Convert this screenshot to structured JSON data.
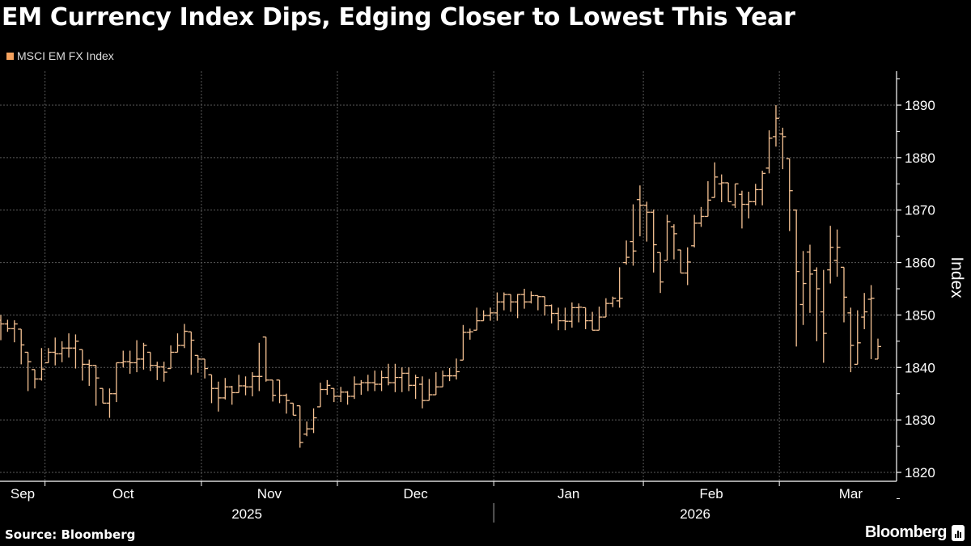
{
  "title": "EM Currency Index Dips, Edging Closer to Lowest This Year",
  "source": "Source: Bloomberg",
  "brand": "Bloomberg",
  "colors": {
    "background": "#000000",
    "bars": "#f7c394",
    "legend_swatch": "#f5a25e",
    "grid": "#5a5a5a",
    "text": "#ffffff"
  },
  "chart_data": {
    "type": "ohlc",
    "title": "EM Currency Index Dips, Edging Closer to Lowest This Year",
    "legend": [
      "MSCI EM FX Index"
    ],
    "legend_position": "top-left",
    "ylabel": "Index",
    "y_axis_side": "right",
    "ylim": [
      1818,
      1896
    ],
    "yticks": [
      1820,
      1830,
      1840,
      1850,
      1860,
      1870,
      1880,
      1890
    ],
    "grid": true,
    "x_month_labels": [
      {
        "month": "2025-09",
        "label": "Sep"
      },
      {
        "month": "2025-10",
        "label": "Oct"
      },
      {
        "month": "2025-11",
        "label": "Nov"
      },
      {
        "month": "2025-12",
        "label": "Dec"
      },
      {
        "month": "2026-01",
        "label": "Jan"
      },
      {
        "month": "2026-02",
        "label": "Feb"
      },
      {
        "month": "2026-03",
        "label": "Mar"
      }
    ],
    "x_year_labels": [
      {
        "year": "2025",
        "label": "2025"
      },
      {
        "year": "2026",
        "label": "2026"
      }
    ],
    "series": [
      {
        "name": "MSCI EM FX Index",
        "fields": [
          "date",
          "open",
          "high",
          "low",
          "close"
        ],
        "bars": [
          [
            "2025-09-22",
            1849.0,
            1850.0,
            1845.2,
            1848.3
          ],
          [
            "2025-09-23",
            1848.3,
            1849.1,
            1846.8,
            1847.4
          ],
          [
            "2025-09-24",
            1847.4,
            1849.0,
            1844.8,
            1848.3
          ],
          [
            "2025-09-25",
            1847.3,
            1847.3,
            1840.6,
            1844.3
          ],
          [
            "2025-09-26",
            1842.9,
            1842.9,
            1835.5,
            1841.1
          ],
          [
            "2025-09-29",
            1839.6,
            1839.6,
            1836.0,
            1837.8
          ],
          [
            "2025-09-30",
            1837.8,
            1843.7,
            1837.5,
            1839.7
          ],
          [
            "2025-10-01",
            1840.9,
            1843.7,
            1840.9,
            1842.9
          ],
          [
            "2025-10-02",
            1842.9,
            1845.7,
            1840.4,
            1842.6
          ],
          [
            "2025-10-03",
            1842.6,
            1845.0,
            1841.0,
            1843.7
          ],
          [
            "2025-10-06",
            1843.7,
            1846.5,
            1841.9,
            1843.7
          ],
          [
            "2025-10-07",
            1843.7,
            1846.3,
            1839.8,
            1845.0
          ],
          [
            "2025-10-08",
            1843.4,
            1843.4,
            1837.5,
            1840.6
          ],
          [
            "2025-10-09",
            1840.6,
            1841.5,
            1836.5,
            1840.4
          ],
          [
            "2025-10-10",
            1840.4,
            1840.4,
            1832.7,
            1838.0
          ],
          [
            "2025-10-13",
            1836.0,
            1836.0,
            1833.2,
            1833.2
          ],
          [
            "2025-10-14",
            1833.2,
            1836.0,
            1830.4,
            1835.0
          ],
          [
            "2025-10-15",
            1835.0,
            1840.9,
            1833.4,
            1840.9
          ],
          [
            "2025-10-16",
            1840.9,
            1843.2,
            1840.0,
            1841.1
          ],
          [
            "2025-10-17",
            1841.1,
            1843.2,
            1838.8,
            1840.9
          ],
          [
            "2025-10-20",
            1840.9,
            1845.2,
            1839.1,
            1841.6
          ],
          [
            "2025-10-21",
            1841.6,
            1844.7,
            1839.6,
            1844.2
          ],
          [
            "2025-10-22",
            1842.9,
            1842.9,
            1839.3,
            1840.4
          ],
          [
            "2025-10-23",
            1840.4,
            1841.1,
            1837.6,
            1840.1
          ],
          [
            "2025-10-24",
            1840.1,
            1841.1,
            1837.3,
            1839.1
          ],
          [
            "2025-10-27",
            1839.8,
            1844.2,
            1839.8,
            1842.9
          ],
          [
            "2025-10-28",
            1842.9,
            1846.5,
            1842.9,
            1844.2
          ],
          [
            "2025-10-29",
            1844.2,
            1848.3,
            1843.7,
            1846.9
          ],
          [
            "2025-10-30",
            1846.8,
            1846.8,
            1838.6,
            1845.2
          ],
          [
            "2025-10-31",
            1842.3,
            1842.3,
            1839.0,
            1841.6
          ],
          [
            "2025-11-03",
            1841.6,
            1841.6,
            1837.9,
            1839.8
          ],
          [
            "2025-11-04",
            1838.6,
            1838.6,
            1833.2,
            1836.0
          ],
          [
            "2025-11-05",
            1836.0,
            1837.3,
            1831.6,
            1834.2
          ],
          [
            "2025-11-06",
            1834.2,
            1838.0,
            1833.9,
            1836.3
          ],
          [
            "2025-11-07",
            1836.3,
            1836.5,
            1832.9,
            1835.2
          ],
          [
            "2025-11-10",
            1835.2,
            1838.6,
            1835.2,
            1836.5
          ],
          [
            "2025-11-11",
            1836.5,
            1838.3,
            1834.7,
            1836.3
          ],
          [
            "2025-11-12",
            1836.3,
            1839.1,
            1834.5,
            1838.3
          ],
          [
            "2025-11-13",
            1838.3,
            1844.7,
            1835.5,
            1838.3
          ],
          [
            "2025-11-14",
            1845.8,
            1845.8,
            1837.3,
            1837.6
          ],
          [
            "2025-11-17",
            1837.6,
            1837.6,
            1833.5,
            1834.7
          ],
          [
            "2025-11-18",
            1837.6,
            1837.6,
            1833.2,
            1834.7
          ],
          [
            "2025-11-19",
            1834.7,
            1835.0,
            1831.2,
            1833.7
          ],
          [
            "2025-11-20",
            1833.2,
            1833.2,
            1830.9,
            1830.9
          ],
          [
            "2025-11-21",
            1832.7,
            1832.7,
            1824.7,
            1825.7
          ],
          [
            "2025-11-24",
            1827.3,
            1829.7,
            1826.9,
            1828.3
          ],
          [
            "2025-11-25",
            1828.3,
            1832.2,
            1827.5,
            1830.4
          ],
          [
            "2025-11-26",
            1832.5,
            1837.1,
            1832.5,
            1835.8
          ],
          [
            "2025-11-27",
            1835.8,
            1837.6,
            1834.8,
            1836.6
          ],
          [
            "2025-11-28",
            1836.0,
            1836.0,
            1833.4,
            1834.5
          ],
          [
            "2025-12-01",
            1834.5,
            1836.3,
            1833.4,
            1835.3
          ],
          [
            "2025-12-02",
            1835.3,
            1835.5,
            1832.9,
            1834.5
          ],
          [
            "2025-12-03",
            1834.5,
            1838.3,
            1834.0,
            1836.8
          ],
          [
            "2025-12-04",
            1836.8,
            1837.6,
            1834.8,
            1837.1
          ],
          [
            "2025-12-05",
            1837.1,
            1838.6,
            1835.5,
            1837.1
          ],
          [
            "2025-12-08",
            1837.1,
            1839.4,
            1835.5,
            1836.8
          ],
          [
            "2025-12-09",
            1836.8,
            1839.4,
            1835.5,
            1838.1
          ],
          [
            "2025-12-10",
            1838.1,
            1840.7,
            1836.6,
            1837.1
          ],
          [
            "2025-12-11",
            1837.1,
            1840.7,
            1835.3,
            1838.1
          ],
          [
            "2025-12-12",
            1838.1,
            1840.0,
            1835.3,
            1838.9
          ],
          [
            "2025-12-15",
            1838.9,
            1840.0,
            1835.5,
            1836.6
          ],
          [
            "2025-12-16",
            1836.6,
            1838.6,
            1834.0,
            1838.1
          ],
          [
            "2025-12-17",
            1836.8,
            1838.3,
            1832.2,
            1833.7
          ],
          [
            "2025-12-18",
            1833.7,
            1837.8,
            1833.7,
            1834.8
          ],
          [
            "2025-12-19",
            1834.8,
            1839.1,
            1834.8,
            1836.3
          ],
          [
            "2025-12-22",
            1836.3,
            1839.4,
            1836.3,
            1838.4
          ],
          [
            "2025-12-23",
            1838.4,
            1839.9,
            1837.4,
            1838.4
          ],
          [
            "2025-12-24",
            1838.4,
            1841.7,
            1837.7,
            1839.2
          ],
          [
            "2025-12-25",
            1841.4,
            1848.1,
            1841.4,
            1846.7
          ],
          [
            "2025-12-26",
            1846.7,
            1847.4,
            1845.3,
            1846.8
          ],
          [
            "2025-12-29",
            1847.1,
            1851.4,
            1847.1,
            1848.9
          ],
          [
            "2025-12-30",
            1848.9,
            1850.9,
            1848.9,
            1849.9
          ],
          [
            "2025-12-31",
            1849.9,
            1851.4,
            1848.9,
            1850.4
          ],
          [
            "2026-01-01",
            1850.4,
            1854.3,
            1848.9,
            1852.5
          ],
          [
            "2026-01-02",
            1852.5,
            1854.3,
            1850.9,
            1853.9
          ],
          [
            "2026-01-05",
            1853.9,
            1853.9,
            1850.6,
            1852.5
          ],
          [
            "2026-01-06",
            1852.5,
            1854.0,
            1849.4,
            1853.9
          ],
          [
            "2026-01-07",
            1853.9,
            1855.0,
            1851.2,
            1852.5
          ],
          [
            "2026-01-08",
            1852.5,
            1854.5,
            1852.2,
            1853.7
          ],
          [
            "2026-01-09",
            1853.7,
            1853.7,
            1850.9,
            1853.5
          ],
          [
            "2026-01-12",
            1853.5,
            1853.5,
            1849.9,
            1851.8
          ],
          [
            "2026-01-13",
            1851.8,
            1852.0,
            1848.4,
            1850.3
          ],
          [
            "2026-01-14",
            1850.3,
            1851.4,
            1847.1,
            1848.9
          ],
          [
            "2026-01-15",
            1848.9,
            1851.4,
            1847.1,
            1848.8
          ],
          [
            "2026-01-16",
            1848.8,
            1852.4,
            1847.6,
            1851.4
          ],
          [
            "2026-01-19",
            1851.4,
            1852.2,
            1848.6,
            1851.5
          ],
          [
            "2026-01-20",
            1851.4,
            1851.4,
            1847.3,
            1848.9
          ],
          [
            "2026-01-21",
            1848.9,
            1850.6,
            1847.1,
            1847.1
          ],
          [
            "2026-01-22",
            1847.1,
            1851.6,
            1847.1,
            1849.6
          ],
          [
            "2026-01-23",
            1849.6,
            1853.2,
            1849.6,
            1852.2
          ],
          [
            "2026-01-26",
            1852.2,
            1853.5,
            1851.5,
            1853.2
          ],
          [
            "2026-01-27",
            1852.7,
            1859.1,
            1851.4,
            1853.2
          ],
          [
            "2026-01-28",
            1860.0,
            1864.2,
            1859.6,
            1861.0
          ],
          [
            "2026-01-29",
            1864.0,
            1871.1,
            1859.4,
            1862.2
          ],
          [
            "2026-01-30",
            1872.0,
            1874.7,
            1865.0,
            1870.9
          ],
          [
            "2026-02-02",
            1870.9,
            1871.6,
            1864.0,
            1869.6
          ],
          [
            "2026-02-03",
            1869.6,
            1870.1,
            1858.1,
            1863.4
          ],
          [
            "2026-02-04",
            1861.9,
            1861.9,
            1854.2,
            1856.3
          ],
          [
            "2026-02-05",
            1860.4,
            1869.1,
            1860.4,
            1867.8
          ],
          [
            "2026-02-06",
            1866.8,
            1867.3,
            1860.6,
            1865.5
          ],
          [
            "2026-02-09",
            1862.4,
            1862.4,
            1858.0,
            1858.0
          ],
          [
            "2026-02-10",
            1858.0,
            1862.9,
            1855.7,
            1860.1
          ],
          [
            "2026-02-11",
            1863.2,
            1869.1,
            1862.9,
            1867.5
          ],
          [
            "2026-02-12",
            1867.5,
            1870.6,
            1866.8,
            1868.8
          ],
          [
            "2026-02-13",
            1868.8,
            1875.5,
            1868.8,
            1871.9
          ],
          [
            "2026-02-16",
            1872.4,
            1879.1,
            1872.4,
            1876.3
          ],
          [
            "2026-02-17",
            1875.0,
            1876.8,
            1871.5,
            1875.2
          ],
          [
            "2026-02-18",
            1875.2,
            1875.2,
            1871.6,
            1871.6
          ],
          [
            "2026-02-19",
            1871.0,
            1875.0,
            1870.4,
            1875.0
          ],
          [
            "2026-02-20",
            1873.0,
            1873.7,
            1866.5,
            1871.1
          ],
          [
            "2026-02-23",
            1871.1,
            1873.5,
            1868.4,
            1871.6
          ],
          [
            "2026-02-24",
            1871.6,
            1875.0,
            1870.9,
            1873.9
          ],
          [
            "2026-02-25",
            1873.9,
            1877.5,
            1870.9,
            1877.0
          ],
          [
            "2026-02-26",
            1878.0,
            1885.2,
            1877.0,
            1883.7
          ],
          [
            "2026-02-27",
            1884.0,
            1890.0,
            1882.1,
            1887.5
          ],
          [
            "2026-03-02",
            1884.5,
            1885.7,
            1877.8,
            1884.0
          ],
          [
            "2026-03-03",
            1879.8,
            1879.8,
            1866.0,
            1873.7
          ],
          [
            "2026-03-04",
            1870.0,
            1870.1,
            1844.0,
            1858.3
          ],
          [
            "2026-03-05",
            1852.0,
            1862.2,
            1848.1,
            1856.0
          ],
          [
            "2026-03-06",
            1862.0,
            1863.4,
            1850.4,
            1857.8
          ],
          [
            "2026-03-09",
            1858.5,
            1859.1,
            1845.0,
            1855.0
          ],
          [
            "2026-03-10",
            1850.6,
            1858.6,
            1840.9,
            1846.5
          ],
          [
            "2026-03-11",
            1858.6,
            1867.0,
            1856.0,
            1862.9
          ],
          [
            "2026-03-12",
            1860.4,
            1866.3,
            1857.3,
            1862.9
          ],
          [
            "2026-03-13",
            1859.1,
            1859.1,
            1848.6,
            1853.4
          ],
          [
            "2026-03-16",
            1850.4,
            1851.4,
            1839.1,
            1844.2
          ],
          [
            "2026-03-17",
            1840.6,
            1850.9,
            1840.6,
            1844.7
          ],
          [
            "2026-03-18",
            1849.6,
            1854.2,
            1847.3,
            1850.6
          ],
          [
            "2026-03-19",
            1853.0,
            1855.7,
            1841.6,
            1853.2
          ],
          [
            "2026-03-20",
            1841.6,
            1845.5,
            1841.6,
            1844.0
          ]
        ]
      }
    ]
  }
}
